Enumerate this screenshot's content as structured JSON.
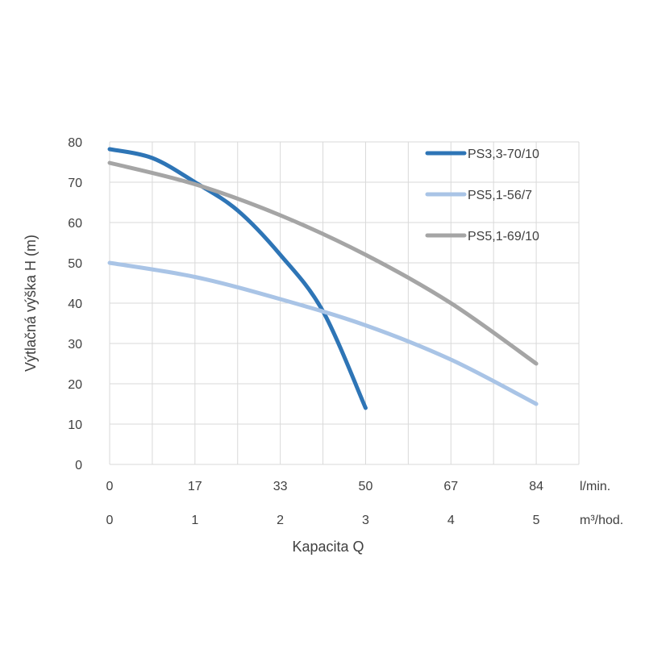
{
  "chart_data": {
    "type": "line",
    "title": "",
    "ylabel": "Výtlačná výška H (m)",
    "xlabel": "Kapacita Q",
    "ylim": [
      0,
      80
    ],
    "y_ticks": [
      0,
      10,
      20,
      30,
      40,
      50,
      60,
      70,
      80
    ],
    "xlim": [
      0,
      5.5
    ],
    "x_unit_rows": [
      {
        "unit": "l/min.",
        "ticks": [
          {
            "at": 0,
            "label": "0"
          },
          {
            "at": 1,
            "label": "17"
          },
          {
            "at": 2,
            "label": "33"
          },
          {
            "at": 3,
            "label": "50"
          },
          {
            "at": 4,
            "label": "67"
          },
          {
            "at": 5,
            "label": "84"
          }
        ]
      },
      {
        "unit": "m³/hod.",
        "ticks": [
          {
            "at": 0,
            "label": "0"
          },
          {
            "at": 1,
            "label": "1"
          },
          {
            "at": 2,
            "label": "2"
          },
          {
            "at": 3,
            "label": "3"
          },
          {
            "at": 4,
            "label": "4"
          },
          {
            "at": 5,
            "label": "5"
          }
        ]
      }
    ],
    "x_gridlines": [
      0,
      0.5,
      1,
      1.5,
      2,
      2.5,
      3,
      3.5,
      4,
      4.5,
      5,
      5.5
    ],
    "grid": true,
    "legend_position": "top-right",
    "series": [
      {
        "name": "PS3,3-70/10",
        "color": "#2e75b6",
        "points": [
          [
            0,
            78.2
          ],
          [
            0.5,
            76
          ],
          [
            1,
            70
          ],
          [
            1.5,
            63
          ],
          [
            2,
            52
          ],
          [
            2.5,
            38
          ],
          [
            3,
            14
          ]
        ]
      },
      {
        "name": "PS5,1-56/7",
        "color": "#a9c4e6",
        "points": [
          [
            0,
            50
          ],
          [
            1,
            46.5
          ],
          [
            2,
            41
          ],
          [
            3,
            34.5
          ],
          [
            4,
            26
          ],
          [
            5,
            15
          ]
        ]
      },
      {
        "name": "PS5,1-69/10",
        "color": "#a5a5a5",
        "points": [
          [
            0,
            74.8
          ],
          [
            1,
            69.5
          ],
          [
            2,
            61.8
          ],
          [
            3,
            52
          ],
          [
            4,
            40
          ],
          [
            5,
            25
          ]
        ]
      }
    ]
  }
}
